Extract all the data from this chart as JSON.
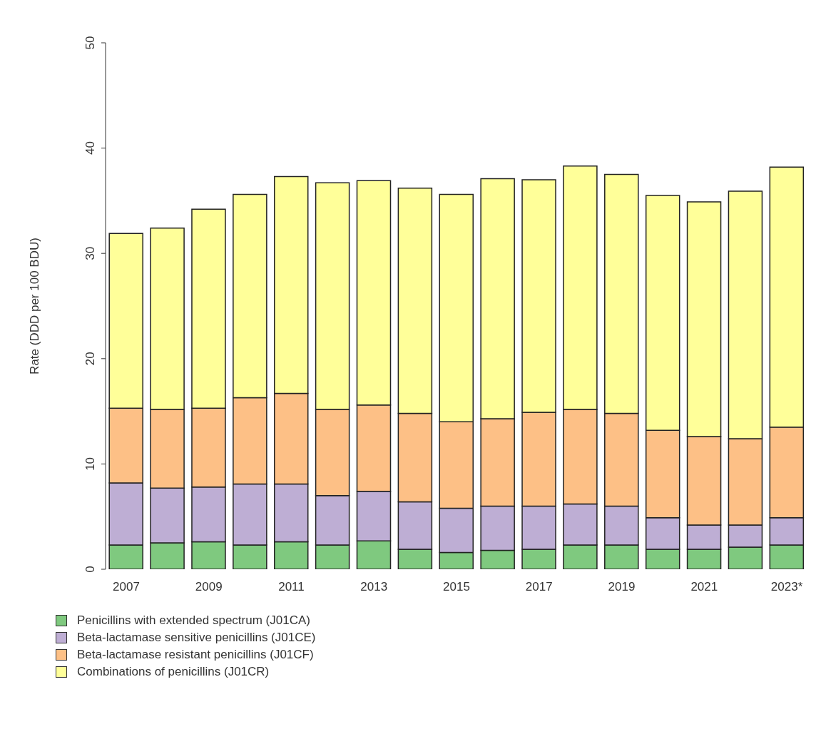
{
  "chart_data": {
    "type": "bar",
    "stacked": true,
    "ylabel": "Rate (DDD per 100 BDU)",
    "categories": [
      "2007",
      null,
      "2009",
      null,
      "2011",
      null,
      "2013",
      null,
      "2015",
      null,
      "2017",
      null,
      "2019",
      null,
      "2021",
      null,
      "2023*"
    ],
    "series": [
      {
        "name": "Penicillins with extended spectrum (J01CA)",
        "color": "#7fc97f",
        "values": [
          2.3,
          2.5,
          2.6,
          2.3,
          2.6,
          2.3,
          2.7,
          1.9,
          1.6,
          1.8,
          1.9,
          2.3,
          2.3,
          1.9,
          1.9,
          2.1,
          2.3
        ]
      },
      {
        "name": "Beta-lactamase sensitive penicillins (J01CE)",
        "color": "#beaed4",
        "values": [
          5.9,
          5.2,
          5.2,
          5.8,
          5.5,
          4.7,
          4.7,
          4.5,
          4.2,
          4.2,
          4.1,
          3.9,
          3.7,
          3.0,
          2.3,
          2.1,
          2.6
        ]
      },
      {
        "name": "Beta-lactamase resistant penicillins (J01CF)",
        "color": "#fdc086",
        "values": [
          7.1,
          7.5,
          7.5,
          8.2,
          8.6,
          8.2,
          8.2,
          8.4,
          8.2,
          8.3,
          8.9,
          9.0,
          8.8,
          8.3,
          8.4,
          8.2,
          8.6
        ]
      },
      {
        "name": "Combinations of penicillins (J01CR)",
        "color": "#ffff99",
        "values": [
          16.6,
          17.2,
          18.9,
          19.3,
          20.6,
          21.5,
          21.3,
          21.4,
          21.6,
          22.8,
          22.1,
          23.1,
          22.7,
          22.3,
          22.3,
          23.5,
          24.7
        ]
      }
    ],
    "ylim": [
      0,
      50
    ],
    "yticks": [
      0,
      10,
      20,
      30,
      40,
      50
    ],
    "legend": "bottom left"
  }
}
